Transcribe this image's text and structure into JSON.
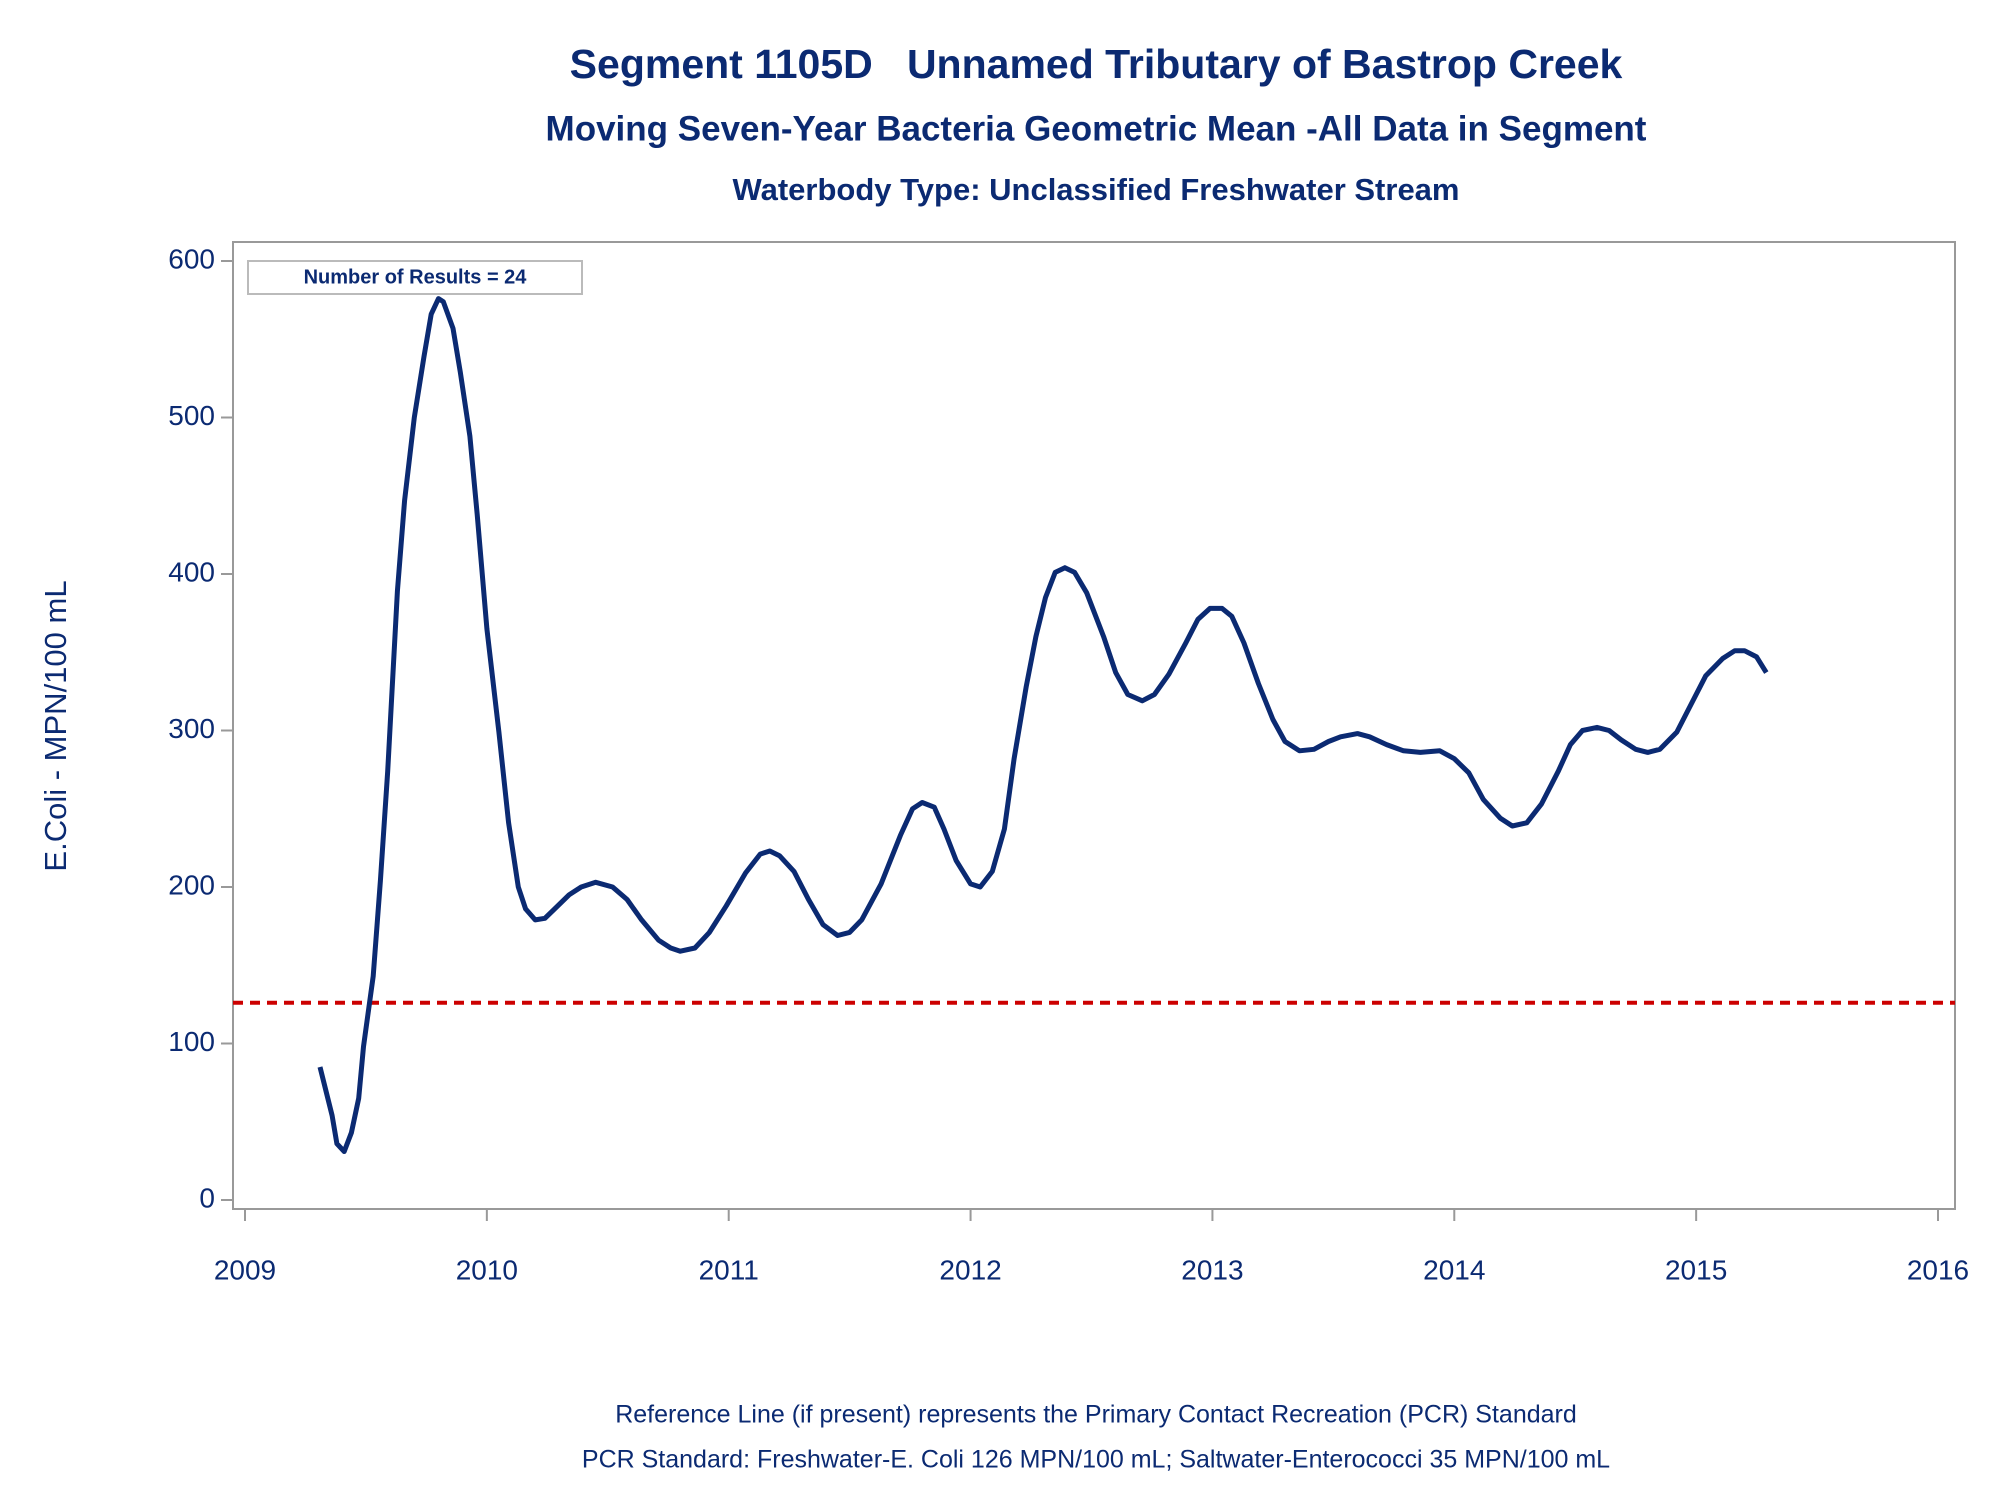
{
  "chart_data": {
    "type": "line",
    "title": "Segment 1105D   Unnamed Tributary of Bastrop Creek",
    "subtitle": "Moving Seven-Year Bacteria Geometric Mean -All Data in Segment",
    "subtitle2": "Waterbody Type: Unclassified Freshwater Stream",
    "y_label": "E.Coli - MPN/100 mL",
    "annotation": "Number of Results = 24",
    "footnotes": [
      "Reference Line (if present) represents the Primary Contact Recreation (PCR) Standard",
      "PCR Standard: Freshwater-E. Coli 126 MPN/100 mL; Saltwater-Enterococci 35 MPN/100 mL"
    ],
    "xlim": [
      2009,
      2016
    ],
    "xticks": [
      2009,
      2010,
      2011,
      2012,
      2013,
      2014,
      2015,
      2016
    ],
    "ylim": [
      0,
      600
    ],
    "yticks": [
      0,
      100,
      200,
      300,
      400,
      500,
      600
    ],
    "reference_line": {
      "value": 126,
      "color": "#cc0000"
    },
    "series": [
      {
        "color": "#0b2a72",
        "x": [
          2009.31,
          2009.36,
          2009.38,
          2009.41,
          2009.44,
          2009.47,
          2009.49,
          2009.53,
          2009.56,
          2009.59,
          2009.63,
          2009.66,
          2009.7,
          2009.74,
          2009.77,
          2009.8,
          2009.82,
          2009.86,
          2009.89,
          2009.93,
          2009.96,
          2010.0,
          2010.05,
          2010.09,
          2010.13,
          2010.16,
          2010.2,
          2010.24,
          2010.28,
          2010.34,
          2010.39,
          2010.45,
          2010.52,
          2010.58,
          2010.64,
          2010.71,
          2010.76,
          2010.8,
          2010.86,
          2010.92,
          2010.99,
          2011.07,
          2011.13,
          2011.17,
          2011.21,
          2011.27,
          2011.33,
          2011.39,
          2011.45,
          2011.5,
          2011.55,
          2011.63,
          2011.71,
          2011.76,
          2011.8,
          2011.85,
          2011.89,
          2011.94,
          2012.0,
          2012.04,
          2012.09,
          2012.14,
          2012.18,
          2012.23,
          2012.27,
          2012.31,
          2012.35,
          2012.39,
          2012.43,
          2012.48,
          2012.55,
          2012.6,
          2012.65,
          2012.71,
          2012.76,
          2012.82,
          2012.89,
          2012.94,
          2012.99,
          2013.04,
          2013.08,
          2013.13,
          2013.19,
          2013.25,
          2013.3,
          2013.36,
          2013.42,
          2013.48,
          2013.53,
          2013.6,
          2013.65,
          2013.72,
          2013.79,
          2013.86,
          2013.94,
          2014.0,
          2014.06,
          2014.12,
          2014.19,
          2014.24,
          2014.3,
          2014.36,
          2014.43,
          2014.48,
          2014.53,
          2014.59,
          2014.64,
          2014.69,
          2014.75,
          2014.8,
          2014.85,
          2014.92,
          2014.98,
          2015.04,
          2015.11,
          2015.16,
          2015.2,
          2015.25,
          2015.29
        ],
        "values": [
          85,
          54,
          36,
          31,
          43,
          65,
          98,
          143,
          204,
          274,
          389,
          447,
          500,
          539,
          566,
          576,
          574,
          557,
          529,
          488,
          438,
          365,
          299,
          241,
          200,
          186,
          179,
          180,
          186,
          195,
          200,
          203,
          200,
          192,
          179,
          166,
          161,
          159,
          161,
          171,
          188,
          209,
          221,
          223,
          220,
          210,
          192,
          176,
          169,
          171,
          179,
          202,
          233,
          250,
          254,
          251,
          237,
          217,
          202,
          200,
          210,
          237,
          282,
          328,
          360,
          385,
          401,
          404,
          401,
          388,
          360,
          337,
          323,
          319,
          323,
          336,
          356,
          371,
          378,
          378,
          373,
          356,
          330,
          307,
          293,
          287,
          288,
          293,
          296,
          298,
          296,
          291,
          287,
          286,
          287,
          282,
          273,
          256,
          244,
          239,
          241,
          253,
          274,
          291,
          300,
          302,
          300,
          294,
          288,
          286,
          288,
          299,
          317,
          335,
          346,
          351,
          351,
          347,
          337
        ]
      }
    ]
  }
}
